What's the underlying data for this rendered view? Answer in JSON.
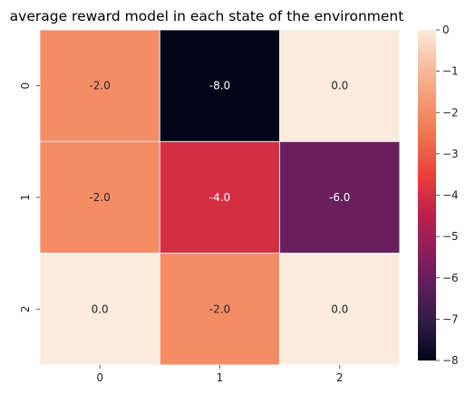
{
  "chart_data": {
    "type": "heatmap",
    "title": "average reward model in each state of the environment",
    "x_categories": [
      "0",
      "1",
      "2"
    ],
    "y_categories": [
      "0",
      "1",
      "2"
    ],
    "values": [
      [
        -2.0,
        -8.0,
        0.0
      ],
      [
        -2.0,
        -4.0,
        -6.0
      ],
      [
        0.0,
        -2.0,
        0.0
      ]
    ],
    "cell_labels": [
      [
        "-2.0",
        "-8.0",
        "0.0"
      ],
      [
        "-2.0",
        "-4.0",
        "-6.0"
      ],
      [
        "0.0",
        "-2.0",
        "0.0"
      ]
    ],
    "colorbar": {
      "vmin": -8,
      "vmax": 0,
      "ticks": [
        0,
        -1,
        -2,
        -3,
        -4,
        -5,
        -6,
        -7,
        -8
      ],
      "tick_labels": [
        "0",
        "−1",
        "−2",
        "−3",
        "−4",
        "−5",
        "−6",
        "−7",
        "−8"
      ]
    },
    "colormap": "rocket",
    "colormap_stops": [
      "#03051a",
      "#2c1c43",
      "#5c1f5b",
      "#8e1d5b",
      "#c21e4b",
      "#e83e39",
      "#f26d4a",
      "#f5976f",
      "#f8bd9d",
      "#faebdd"
    ],
    "xlabel": "",
    "ylabel": "",
    "grid": "white cell borders",
    "legend": "colorbar-right"
  }
}
